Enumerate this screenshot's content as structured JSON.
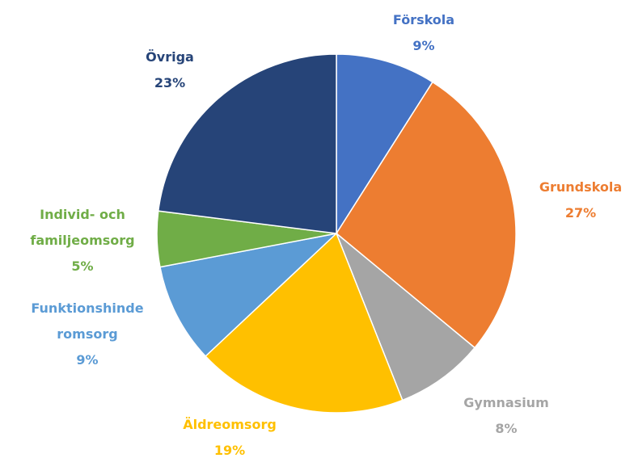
{
  "chart_data": {
    "type": "pie",
    "categories": [
      "Förskola",
      "Grundskola",
      "Gymnasium",
      "Äldreomsorg",
      "Funktionshinderomsorg",
      "Individ- och familjeomsorg",
      "Övriga"
    ],
    "values": [
      9,
      27,
      8,
      19,
      9,
      5,
      23
    ],
    "value_labels": [
      "9%",
      "27%",
      "8%",
      "19%",
      "9%",
      "5%",
      "23%"
    ],
    "colors": [
      "#4472c4",
      "#ed7d31",
      "#a5a5a5",
      "#ffc000",
      "#5b9bd5",
      "#70ad47",
      "#264478"
    ]
  }
}
